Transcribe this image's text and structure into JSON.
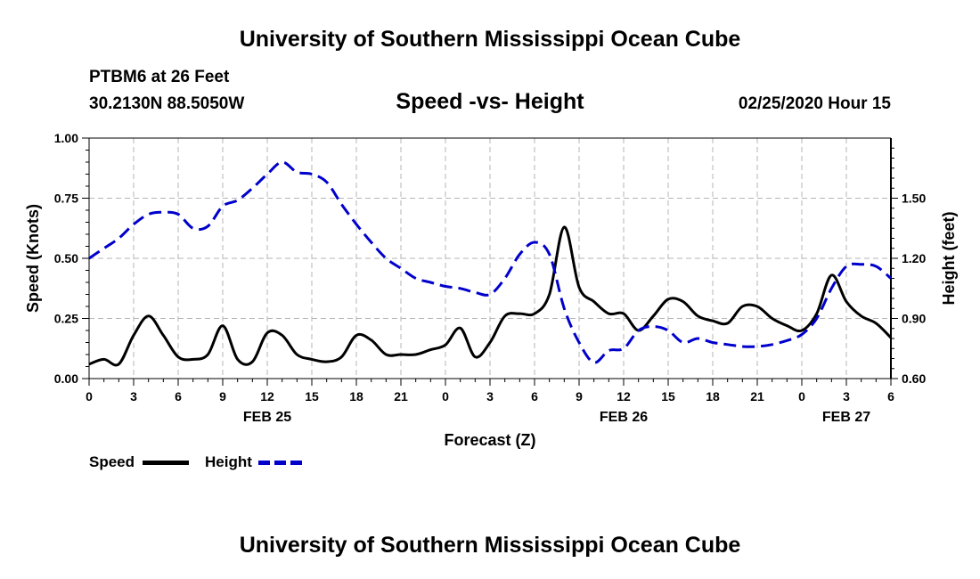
{
  "header": {
    "title": "University of Southern Mississippi Ocean Cube",
    "station": "PTBM6 at 26 Feet",
    "coords": "30.2130N 88.5050W",
    "plot_title": "Speed -vs- Height",
    "date_hour": "02/25/2020 Hour 15"
  },
  "footer": {
    "title": "University of Southern Mississippi Ocean Cube"
  },
  "legend": [
    {
      "label": "Speed",
      "color": "#000000",
      "style": "solid"
    },
    {
      "label": "Height",
      "color": "#0000cc",
      "style": "dashed"
    }
  ],
  "chart_data": {
    "type": "line",
    "title": "Speed -vs- Height",
    "xlabel": "Forecast (Z)",
    "ylabel": "Speed (Knots)",
    "y2label": "Height (feet)",
    "x_hours_range": [
      0,
      54
    ],
    "ylim": [
      0,
      1.0
    ],
    "y2lim": [
      0.6,
      1.8
    ],
    "x_ticks": [
      "0",
      "3",
      "6",
      "9",
      "12",
      "15",
      "18",
      "21",
      "0",
      "3",
      "6",
      "9",
      "12",
      "15",
      "18",
      "21",
      "0",
      "3",
      "6"
    ],
    "date_labels": [
      {
        "text": "FEB 25",
        "hour": 12
      },
      {
        "text": "FEB 26",
        "hour": 36
      },
      {
        "text": "FEB 27",
        "hour": 51
      }
    ],
    "y_ticks": [
      "0.00",
      "0.25",
      "0.50",
      "0.75",
      "1.00"
    ],
    "y2_ticks": [
      "0.60",
      "0.90",
      "1.20",
      "1.50"
    ],
    "y2_tick_values": [
      0.6,
      0.9,
      1.2,
      1.5
    ],
    "grid": true,
    "series": [
      {
        "name": "Speed",
        "axis": "left",
        "color": "#000000",
        "x": [
          0,
          1,
          2,
          3,
          4,
          5,
          6,
          7,
          8,
          9,
          10,
          11,
          12,
          13,
          14,
          15,
          16,
          17,
          18,
          19,
          20,
          21,
          22,
          23,
          24,
          25,
          26,
          27,
          28,
          29,
          30,
          31,
          32,
          33,
          34,
          35,
          36,
          37,
          38,
          39,
          40,
          41,
          42,
          43,
          44,
          45,
          46,
          47,
          48,
          49,
          50,
          51,
          52,
          53,
          54
        ],
        "values": [
          0.06,
          0.08,
          0.06,
          0.18,
          0.26,
          0.18,
          0.09,
          0.08,
          0.1,
          0.22,
          0.08,
          0.07,
          0.19,
          0.18,
          0.1,
          0.08,
          0.07,
          0.09,
          0.18,
          0.16,
          0.1,
          0.1,
          0.1,
          0.12,
          0.14,
          0.21,
          0.09,
          0.15,
          0.26,
          0.27,
          0.27,
          0.35,
          0.63,
          0.38,
          0.32,
          0.27,
          0.27,
          0.2,
          0.26,
          0.33,
          0.32,
          0.26,
          0.24,
          0.23,
          0.3,
          0.3,
          0.25,
          0.22,
          0.2,
          0.27,
          0.43,
          0.32,
          0.26,
          0.23,
          0.17
        ]
      },
      {
        "name": "Height",
        "axis": "right",
        "color": "#0000cc",
        "x": [
          0,
          1,
          2,
          3,
          4,
          5,
          6,
          7,
          8,
          9,
          10,
          11,
          12,
          13,
          14,
          15,
          16,
          17,
          18,
          19,
          20,
          21,
          22,
          23,
          24,
          25,
          26,
          27,
          28,
          29,
          30,
          31,
          32,
          33,
          34,
          35,
          36,
          37,
          38,
          39,
          40,
          41,
          42,
          43,
          44,
          45,
          46,
          47,
          48,
          49,
          50,
          51,
          52,
          53,
          54
        ],
        "values": [
          1.2,
          1.25,
          1.3,
          1.37,
          1.42,
          1.43,
          1.42,
          1.35,
          1.36,
          1.46,
          1.49,
          1.55,
          1.62,
          1.68,
          1.63,
          1.62,
          1.58,
          1.47,
          1.37,
          1.28,
          1.2,
          1.15,
          1.1,
          1.08,
          1.06,
          1.05,
          1.03,
          1.02,
          1.1,
          1.22,
          1.28,
          1.22,
          0.95,
          0.78,
          0.68,
          0.74,
          0.75,
          0.84,
          0.86,
          0.84,
          0.78,
          0.8,
          0.78,
          0.77,
          0.76,
          0.76,
          0.77,
          0.79,
          0.82,
          0.9,
          1.05,
          1.16,
          1.17,
          1.16,
          1.1
        ]
      }
    ]
  }
}
